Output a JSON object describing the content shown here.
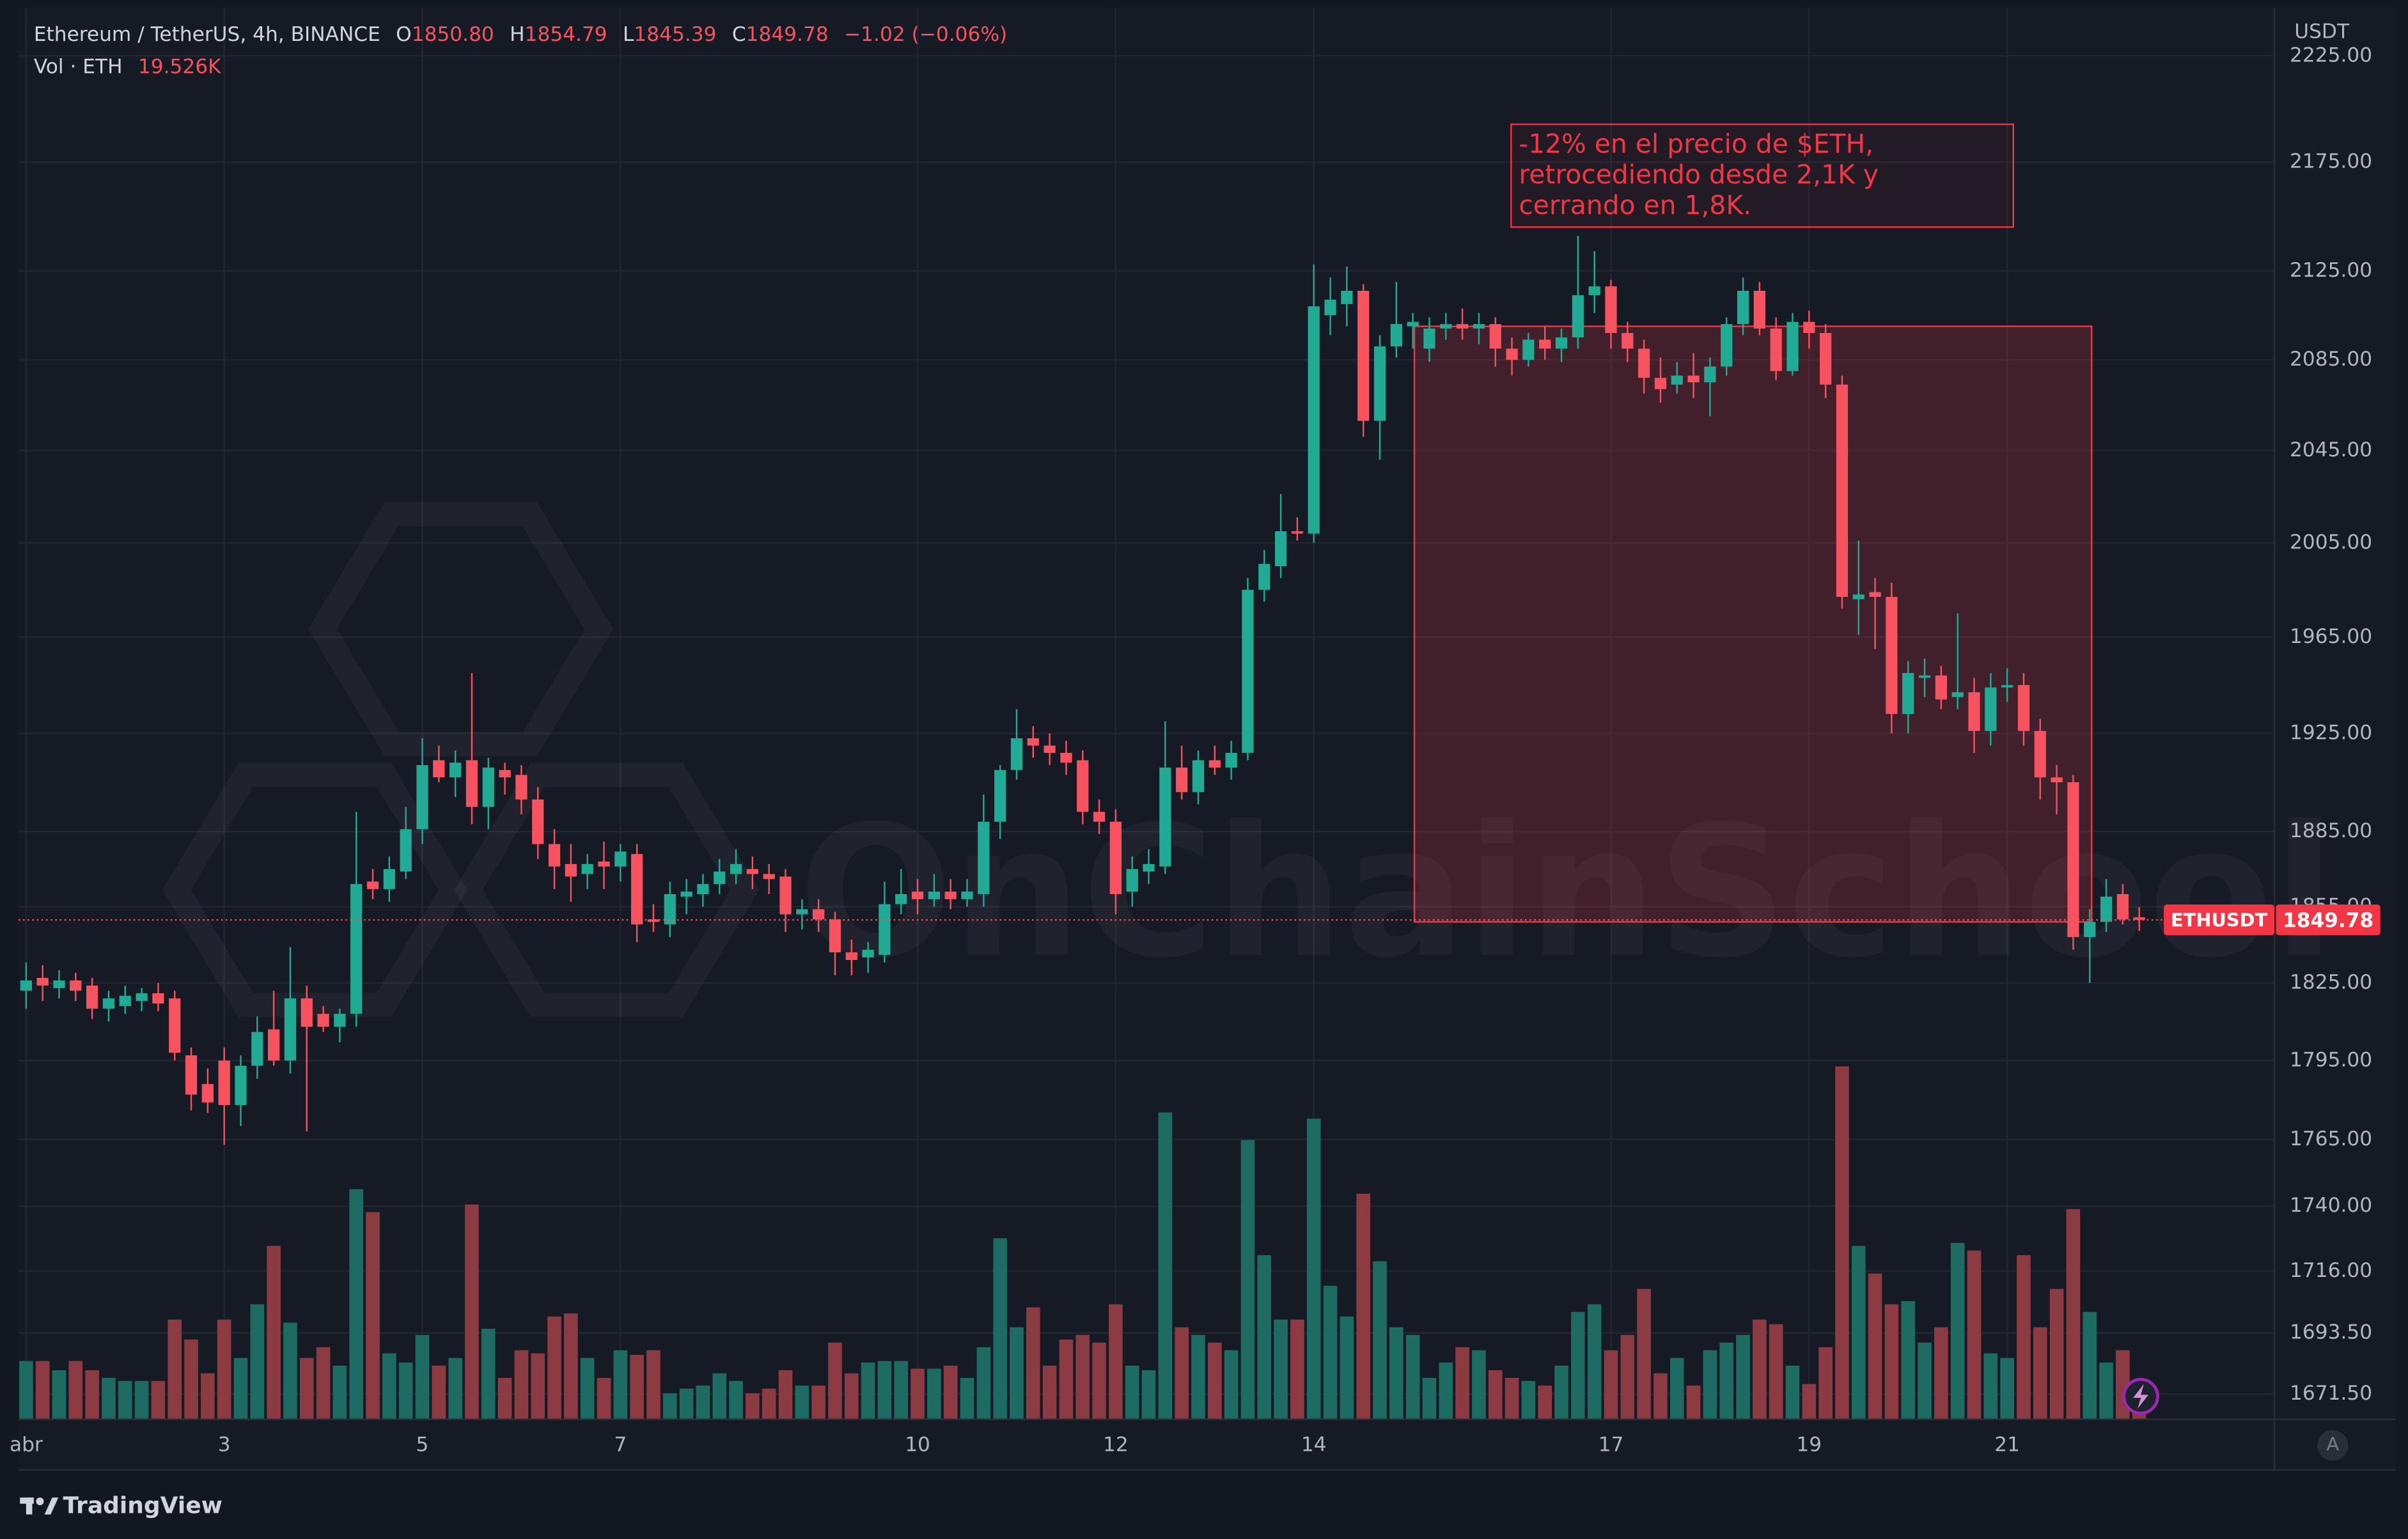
{
  "chart_data": {
    "type": "candlestick",
    "legend": {
      "symbol": "Ethereum / TetherUS, 4h, BINANCE",
      "ohlc": [
        {
          "label": "O",
          "value": "1850.80"
        },
        {
          "label": "H",
          "value": "1854.79"
        },
        {
          "label": "L",
          "value": "1845.39"
        },
        {
          "label": "C",
          "value": "1849.78"
        }
      ],
      "change": "−1.02 (−0.06%)",
      "volume_label": "Vol · ETH",
      "volume_value": "19.526K"
    },
    "currency": "USDT",
    "watermark": "OnChainSchool",
    "brand": "TradingView",
    "scale_button": "A",
    "annotation": [
      "-12% en el precio de $ETH,",
      "retrocediendo desde 2,1K y",
      "cerrando en 1,8K."
    ],
    "range_box": {
      "top": 2100,
      "bottom": 1849
    },
    "categories": [
      "abr",
      null,
      null,
      null,
      null,
      null,
      null,
      null,
      null,
      null,
      null,
      null,
      "3",
      null,
      null,
      null,
      null,
      null,
      null,
      null,
      null,
      null,
      null,
      null,
      "5",
      null,
      null,
      null,
      null,
      null,
      null,
      null,
      null,
      null,
      null,
      null,
      "7",
      null,
      null,
      null,
      null,
      null,
      null,
      null,
      null,
      null,
      null,
      null,
      null,
      null,
      null,
      null,
      null,
      null,
      "10",
      null,
      null,
      null,
      null,
      null,
      null,
      null,
      null,
      null,
      null,
      null,
      "12",
      null,
      null,
      null,
      null,
      null,
      null,
      null,
      null,
      null,
      null,
      null,
      "14",
      null,
      null,
      null,
      null,
      null,
      null,
      null,
      null,
      null,
      null,
      null,
      null,
      null,
      null,
      null,
      null,
      null,
      "17",
      null,
      null,
      null,
      null,
      null,
      null,
      null,
      null,
      null,
      null,
      null,
      "19",
      null,
      null,
      null,
      null,
      null,
      null,
      null,
      null,
      null,
      null,
      null,
      "21",
      null,
      null,
      null,
      null,
      null,
      null,
      null,
      null
    ],
    "series": [
      {
        "name": "ETHUSDT",
        "up_color": "#22ab94",
        "down_color": "#f7525f",
        "open": [
          1822,
          1827,
          1823,
          1826,
          1824,
          1815,
          1816,
          1818,
          1821,
          1819,
          1797,
          1786,
          1795,
          1778,
          1793,
          1807,
          1795,
          1819,
          1813,
          1808,
          1813,
          1865,
          1862,
          1869,
          1886,
          1914,
          1907,
          1914,
          1895,
          1910,
          1908,
          1898,
          1880,
          1872,
          1868,
          1873,
          1871,
          1876,
          1850,
          1848,
          1859,
          1860,
          1864,
          1868,
          1870,
          1868,
          1867,
          1852,
          1854,
          1850,
          1837,
          1835,
          1836,
          1856,
          1861,
          1858,
          1861,
          1858,
          1860,
          1889,
          1910,
          1923,
          1920,
          1917,
          1914,
          1893,
          1889,
          1861,
          1869,
          1871,
          1911,
          1901,
          1914,
          1911,
          1917,
          1985,
          1995,
          2010,
          2009,
          2105,
          2110,
          2116,
          2058,
          2091,
          2100,
          2090,
          2099,
          2101,
          2099,
          2101,
          2090,
          2085,
          2094,
          2090,
          2095,
          2114,
          2118,
          2097,
          2090,
          2077,
          2074,
          2078,
          2075,
          2082,
          2101,
          2116,
          2099,
          2080,
          2102,
          2097,
          2074,
          1981,
          1984,
          1982,
          1933,
          1948,
          1949,
          1940,
          1942,
          1926,
          1944,
          1945,
          1926,
          1907,
          1905,
          1843,
          1849,
          1860,
          1850.8
        ],
        "high": [
          1833,
          1832,
          1830,
          1829,
          1827,
          1822,
          1824,
          1823,
          1825,
          1822,
          1800,
          1792,
          1800,
          1797,
          1812,
          1822,
          1839,
          1824,
          1816,
          1815,
          1893,
          1870,
          1875,
          1895,
          1923,
          1920,
          1918,
          1950,
          1915,
          1913,
          1912,
          1903,
          1886,
          1880,
          1876,
          1881,
          1880,
          1880,
          1856,
          1865,
          1866,
          1868,
          1874,
          1878,
          1875,
          1872,
          1870,
          1858,
          1858,
          1853,
          1842,
          1841,
          1865,
          1870,
          1866,
          1868,
          1866,
          1866,
          1900,
          1912,
          1935,
          1928,
          1925,
          1922,
          1918,
          1898,
          1894,
          1875,
          1878,
          1930,
          1920,
          1918,
          1920,
          1922,
          1990,
          2002,
          2026,
          2016,
          2128,
          2122,
          2127,
          2119,
          2096,
          2120,
          2106,
          2104,
          2106,
          2108,
          2106,
          2104,
          2095,
          2097,
          2100,
          2099,
          2141,
          2134,
          2121,
          2102,
          2094,
          2086,
          2084,
          2088,
          2086,
          2104,
          2122,
          2120,
          2104,
          2106,
          2107,
          2101,
          2078,
          2006,
          1990,
          1988,
          1955,
          1956,
          1953,
          1975,
          1948,
          1950,
          1952,
          1950,
          1931,
          1912,
          1908,
          1854,
          1866,
          1864,
          1854.79
        ],
        "low": [
          1815,
          1818,
          1819,
          1818,
          1811,
          1810,
          1813,
          1814,
          1814,
          1795,
          1776,
          1775,
          1763,
          1770,
          1788,
          1793,
          1790,
          1768,
          1806,
          1802,
          1808,
          1858,
          1857,
          1866,
          1880,
          1905,
          1899,
          1888,
          1886,
          1900,
          1892,
          1874,
          1862,
          1857,
          1862,
          1862,
          1865,
          1841,
          1845,
          1843,
          1852,
          1855,
          1860,
          1864,
          1862,
          1860,
          1845,
          1846,
          1845,
          1828,
          1828,
          1829,
          1833,
          1852,
          1852,
          1855,
          1854,
          1855,
          1855,
          1882,
          1906,
          1915,
          1912,
          1908,
          1888,
          1884,
          1852,
          1855,
          1864,
          1868,
          1898,
          1896,
          1908,
          1906,
          1914,
          1980,
          1990,
          2006,
          2005,
          2096,
          2100,
          2051,
          2041,
          2086,
          2090,
          2084,
          2094,
          2094,
          2092,
          2082,
          2078,
          2082,
          2085,
          2084,
          2090,
          2106,
          2090,
          2084,
          2070,
          2066,
          2070,
          2068,
          2060,
          2078,
          2096,
          2096,
          2076,
          2078,
          2090,
          2068,
          1977,
          1966,
          1960,
          1925,
          1925,
          1940,
          1935,
          1935,
          1917,
          1920,
          1938,
          1920,
          1898,
          1892,
          1838,
          1825,
          1845,
          1848,
          1845.39
        ],
        "close": [
          1826,
          1824,
          1826,
          1822,
          1815,
          1819,
          1820,
          1821,
          1817,
          1798,
          1782,
          1779,
          1778,
          1793,
          1806,
          1795,
          1819,
          1808,
          1808,
          1813,
          1864,
          1862,
          1870,
          1886,
          1912,
          1907,
          1913,
          1895,
          1911,
          1907,
          1898,
          1880,
          1871,
          1867,
          1872,
          1871,
          1877,
          1848,
          1849,
          1860,
          1861,
          1864,
          1869,
          1872,
          1868,
          1866,
          1852,
          1854,
          1850,
          1837,
          1834,
          1838,
          1856,
          1860,
          1858,
          1861,
          1858,
          1861,
          1889,
          1910,
          1923,
          1920,
          1917,
          1913,
          1893,
          1889,
          1860,
          1870,
          1872,
          1911,
          1901,
          1914,
          1911,
          1917,
          1985,
          1996,
          2010,
          2009,
          2109,
          2112,
          2116,
          2058,
          2091,
          2101,
          2102,
          2099,
          2101,
          2099,
          2101,
          2090,
          2085,
          2094,
          2090,
          2095,
          2114,
          2118,
          2097,
          2090,
          2077,
          2072,
          2078,
          2075,
          2082,
          2101,
          2116,
          2099,
          2080,
          2102,
          2097,
          2074,
          1982,
          1983,
          1982,
          1933,
          1950,
          1949,
          1939,
          1942,
          1926,
          1944,
          1945,
          1926,
          1907,
          1905,
          1843,
          1849,
          1859,
          1850,
          1849.78
        ]
      }
    ],
    "volume": {
      "up_color": "#1d6b63",
      "down_color": "#8c3b42",
      "values": [
        38000,
        38000,
        32000,
        38000,
        32000,
        27000,
        25000,
        25000,
        25000,
        65000,
        52000,
        30000,
        65000,
        40000,
        75000,
        113000,
        63000,
        40000,
        47000,
        35000,
        150000,
        135000,
        43000,
        37000,
        55000,
        35000,
        40000,
        140000,
        59000,
        27000,
        45000,
        43000,
        67000,
        69000,
        40000,
        27000,
        45000,
        42000,
        45000,
        17000,
        20000,
        22000,
        30000,
        25000,
        17000,
        20000,
        32000,
        22000,
        22000,
        50000,
        30000,
        37000,
        38000,
        38000,
        33000,
        33000,
        35000,
        27000,
        47000,
        118000,
        60000,
        73000,
        35000,
        52000,
        55000,
        50000,
        75000,
        35000,
        32000,
        200000,
        60000,
        55000,
        50000,
        45000,
        182000,
        107000,
        65000,
        65000,
        196000,
        87000,
        67000,
        147000,
        103000,
        60000,
        55000,
        27000,
        37000,
        47000,
        45000,
        32000,
        27000,
        25000,
        22000,
        35000,
        70000,
        75000,
        45000,
        55000,
        85000,
        30000,
        40000,
        22000,
        45000,
        50000,
        55000,
        65000,
        62000,
        35000,
        23000,
        47000,
        230000,
        113000,
        95000,
        75000,
        77000,
        50000,
        60000,
        115000,
        110000,
        43000,
        40000,
        107000,
        60000,
        85000,
        137000,
        70000,
        37000,
        45000,
        19526
      ]
    },
    "ylim": [
      1662.5,
      2248
    ],
    "log_scale": true,
    "grid": true,
    "yticks": [
      {
        "value": 2225,
        "label": "2225.00"
      },
      {
        "value": 2175,
        "label": "2175.00"
      },
      {
        "value": 2125,
        "label": "2125.00"
      },
      {
        "value": 2085,
        "label": "2085.00"
      },
      {
        "value": 2045,
        "label": "2045.00"
      },
      {
        "value": 2005,
        "label": "2005.00"
      },
      {
        "value": 1965,
        "label": "1965.00"
      },
      {
        "value": 1925,
        "label": "1925.00"
      },
      {
        "value": 1885,
        "label": "1885.00"
      },
      {
        "value": 1855,
        "label": "1855.00"
      },
      {
        "value": 1825,
        "label": "1825.00"
      },
      {
        "value": 1795,
        "label": "1795.00"
      },
      {
        "value": 1765,
        "label": "1765.00"
      },
      {
        "value": 1740,
        "label": "1740.00"
      },
      {
        "value": 1716,
        "label": "1716.00"
      },
      {
        "value": 1693.5,
        "label": "1693.50"
      },
      {
        "value": 1671.5,
        "label": "1671.50"
      }
    ]
  }
}
